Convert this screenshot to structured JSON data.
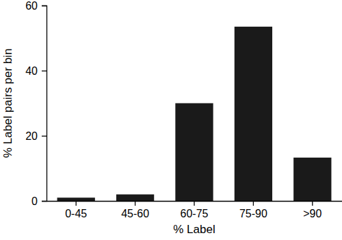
{
  "chart_data": {
    "type": "bar",
    "xlabel": "% Label",
    "ylabel": "% Label pairs per bin",
    "categories": [
      "0-45",
      "45-60",
      "60-75",
      "75-90",
      ">90"
    ],
    "values": [
      1,
      2,
      30,
      53.5,
      13.3
    ],
    "color": "#1a1a1a",
    "ylim": [
      0,
      60
    ],
    "yticks": [
      0,
      20,
      40,
      60
    ],
    "grid": false
  }
}
